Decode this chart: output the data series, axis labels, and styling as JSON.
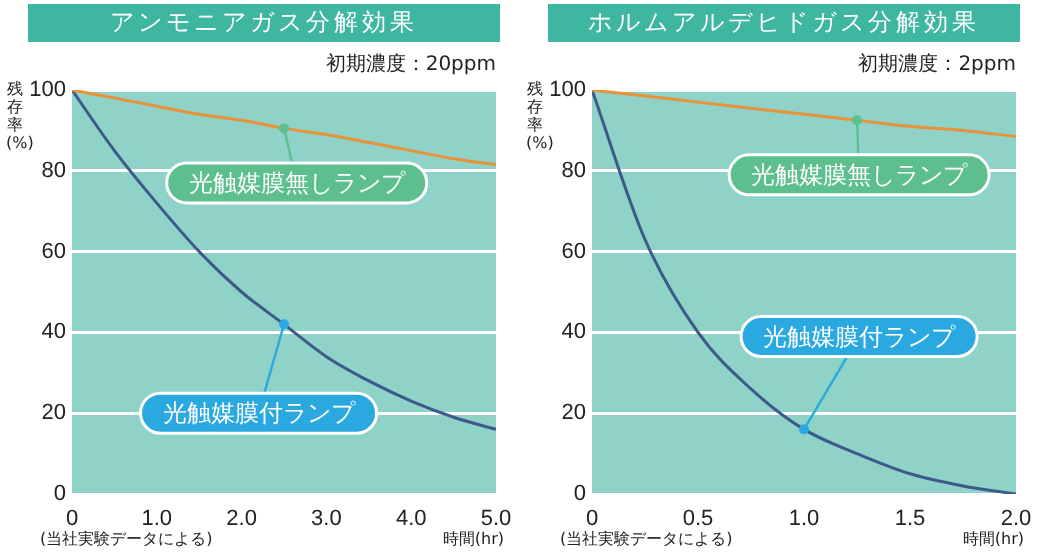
{
  "chart_data": [
    {
      "type": "line",
      "title": "アンモニアガス分解効果",
      "subtitle": "初期濃度：20ppm",
      "xlabel": "時間(hr)",
      "ylabel": "残存率(%)",
      "annotations": [
        "(当社実験データによる)"
      ],
      "xlim": [
        0,
        5
      ],
      "xticks": [
        0,
        {
          "value": 1,
          "label": "1.0"
        },
        {
          "value": 2,
          "label": "2.0"
        },
        {
          "value": 3,
          "label": "3.0"
        },
        {
          "value": 4,
          "label": "4.0"
        },
        {
          "value": 5,
          "label": "5.0"
        }
      ],
      "ylim": [
        0,
        100
      ],
      "yticks": [
        0,
        20,
        40,
        60,
        80,
        100
      ],
      "grid": "y",
      "legend": false,
      "marker": "none",
      "line_style": "solid",
      "series": [
        {
          "name": "光触媒膜無しランプ",
          "color": "#e8923a",
          "x": [
            0,
            0.5,
            1,
            1.5,
            2,
            2.5,
            3,
            3.5,
            4,
            4.5,
            5
          ],
          "values": [
            100,
            98,
            96,
            94,
            92.5,
            90.5,
            89,
            87,
            85,
            83,
            81.5
          ]
        },
        {
          "name": "光触媒膜付ランプ",
          "color": "#3d5a8a",
          "x": [
            0,
            0.5,
            1,
            1.5,
            2,
            2.5,
            3,
            3.5,
            4,
            4.5,
            5
          ],
          "values": [
            100,
            85,
            72,
            60,
            50,
            42,
            34,
            28,
            23,
            19,
            16
          ]
        }
      ]
    },
    {
      "type": "line",
      "title": "ホルムアルデヒドガス分解効果",
      "subtitle": "初期濃度：2ppm",
      "xlabel": "時間(hr)",
      "ylabel": "残存率(%)",
      "annotations": [
        "(当社実験データによる)"
      ],
      "xlim": [
        0,
        2
      ],
      "xticks": [
        0,
        0.5,
        {
          "value": 1,
          "label": "1.0"
        },
        1.5,
        {
          "value": 2,
          "label": "2.0"
        }
      ],
      "ylim": [
        0,
        100
      ],
      "yticks": [
        0,
        20,
        40,
        60,
        80,
        100
      ],
      "grid": "y",
      "legend": false,
      "marker": "none",
      "line_style": "solid",
      "series": [
        {
          "name": "光触媒膜無しランプ",
          "color": "#e8923a",
          "x": [
            0,
            0.25,
            0.5,
            0.75,
            1,
            1.25,
            1.5,
            1.75,
            2
          ],
          "values": [
            100,
            98.5,
            97,
            95.5,
            94,
            92.5,
            91,
            90,
            88.5
          ]
        },
        {
          "name": "光触媒膜付ランプ",
          "color": "#3d5a8a",
          "x": [
            0,
            0.25,
            0.5,
            0.75,
            1,
            1.25,
            1.5,
            1.75,
            2
          ],
          "values": [
            100,
            63,
            40,
            26,
            16,
            10,
            5,
            2,
            0
          ]
        }
      ]
    }
  ]
}
